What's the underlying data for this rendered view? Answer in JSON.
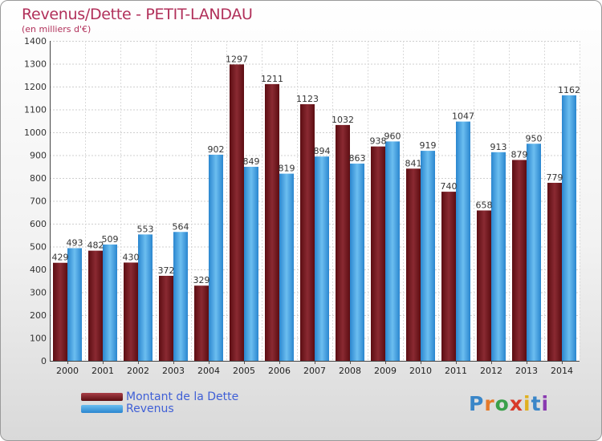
{
  "title": "Revenus/Dette - PETIT-LANDAU",
  "subtitle": "(en milliers d'€)",
  "legend": {
    "debt_label": "Montant de la Dette",
    "revenue_label": "Revenus"
  },
  "logo": {
    "text": "Proxiti",
    "letters": [
      "P",
      "r",
      "o",
      "x",
      "i",
      "t",
      "i"
    ],
    "colors": [
      "#3a86c8",
      "#e5792a",
      "#3aa04a",
      "#d83a2a",
      "#e0b020",
      "#3a86c8",
      "#8a3ab0"
    ]
  },
  "colors": {
    "debt": "#7a1f28",
    "revenue": "#4aa3e6",
    "title": "#b1305a",
    "legend_text": "#3f5fd6"
  },
  "chart_data": {
    "type": "bar",
    "categories": [
      "2000",
      "2001",
      "2002",
      "2003",
      "2004",
      "2005",
      "2006",
      "2007",
      "2008",
      "2009",
      "2010",
      "2011",
      "2012",
      "2013",
      "2014"
    ],
    "series": [
      {
        "name": "Montant de la Dette",
        "values": [
          429,
          482,
          430,
          372,
          329,
          1297,
          1211,
          1123,
          1032,
          938,
          841,
          740,
          658,
          879,
          779
        ]
      },
      {
        "name": "Revenus",
        "values": [
          493,
          509,
          553,
          564,
          902,
          849,
          819,
          894,
          863,
          960,
          919,
          1047,
          913,
          950,
          1162
        ]
      }
    ],
    "ylim": [
      0,
      1400
    ],
    "yticks": [
      0,
      100,
      200,
      300,
      400,
      500,
      600,
      700,
      800,
      900,
      1000,
      1100,
      1200,
      1300,
      1400
    ],
    "grid": true,
    "legend_position": "bottom-left"
  }
}
